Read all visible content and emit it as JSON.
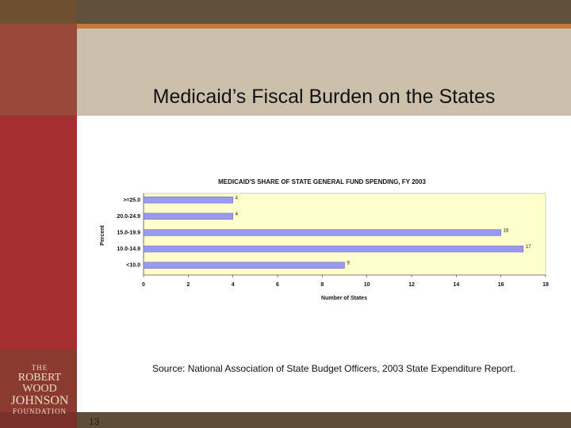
{
  "slide": {
    "title": "Medicaid’s Fiscal Burden on the States",
    "source": "Source: National Association of State Budget Officers, 2003 State Expenditure Report.",
    "page_number": "13",
    "logo": {
      "line1": "THE",
      "line2": "ROBERT WOOD",
      "line3": "JOHNSON",
      "line4": "FOUNDATION"
    }
  },
  "colors": {
    "bar": "#9999ee",
    "plot_bg": "#ffffcc",
    "sidebar": "#a5302f",
    "header": "#ccc0ad",
    "accent": "#c9783a"
  },
  "chart_data": {
    "type": "bar",
    "orientation": "horizontal",
    "title": "MEDICAID'S SHARE OF STATE GENERAL FUND SPENDING, FY 2003",
    "xlabel": "Number of States",
    "ylabel": "Percent",
    "categories": [
      ">=25.0",
      "20.0-24.9",
      "15.0-19.9",
      "10.0-14.9",
      "<10.0"
    ],
    "values": [
      4,
      4,
      16,
      17,
      9
    ],
    "xlim": [
      0,
      18
    ],
    "xticks": [
      0,
      2,
      4,
      6,
      8,
      10,
      12,
      14,
      16,
      18
    ],
    "grid": false,
    "legend": "none"
  }
}
